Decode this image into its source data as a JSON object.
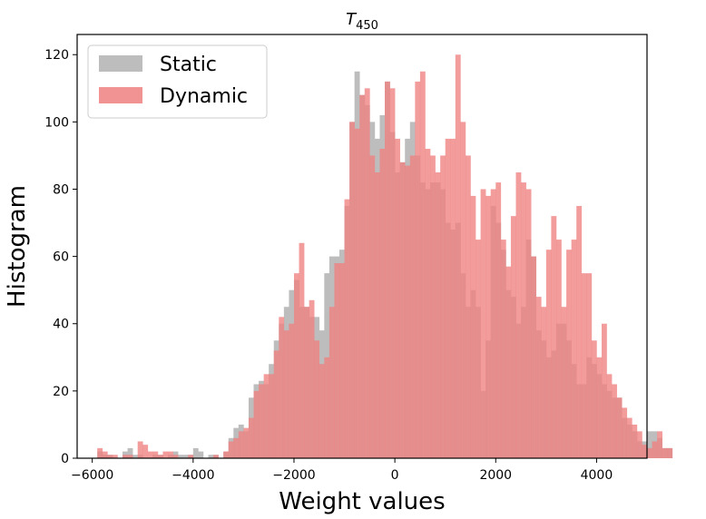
{
  "chart_data": {
    "type": "bar",
    "title_main": "T",
    "title_sub": "450",
    "xlabel": "Weight values",
    "ylabel": "Histogram",
    "xlim": [
      -6300,
      5000
    ],
    "ylim": [
      0,
      126
    ],
    "xticks": [
      -6000,
      -4000,
      -2000,
      0,
      2000,
      4000
    ],
    "xtick_labels": [
      "−6000",
      "−4000",
      "−2000",
      "0",
      "2000",
      "4000"
    ],
    "yticks": [
      0,
      20,
      40,
      60,
      80,
      100,
      120
    ],
    "ytick_labels": [
      "0",
      "20",
      "40",
      "60",
      "80",
      "100",
      "120"
    ],
    "grid": false,
    "legend_position": "top-left",
    "bin_start": -5850,
    "bin_width": 100,
    "series": [
      {
        "name": "Static",
        "color": "#bdbdbd",
        "values": [
          2,
          1,
          1,
          0,
          0,
          2,
          3,
          1,
          1,
          0,
          0,
          1,
          1,
          0,
          1,
          2,
          1,
          1,
          1,
          3,
          2,
          0,
          1,
          1,
          0,
          2,
          6,
          9,
          10,
          8,
          18,
          22,
          23,
          22,
          28,
          35,
          40,
          45,
          50,
          53,
          45,
          45,
          42,
          42,
          38,
          55,
          60,
          60,
          62,
          75,
          100,
          115,
          108,
          105,
          100,
          95,
          102,
          112,
          97,
          85,
          88,
          95,
          100,
          90,
          82,
          80,
          82,
          82,
          80,
          70,
          68,
          70,
          55,
          45,
          50,
          45,
          20,
          35,
          75,
          70,
          62,
          50,
          48,
          40,
          45,
          65,
          60,
          38,
          35,
          30,
          32,
          40,
          40,
          35,
          28,
          22,
          22,
          30,
          28,
          25,
          22,
          20,
          18,
          18,
          12,
          10,
          8,
          5,
          5,
          8,
          8,
          6,
          3,
          3
        ]
      },
      {
        "name": "Dynamic",
        "color": "#f08080",
        "values": [
          3,
          2,
          1,
          1,
          0,
          1,
          1,
          0,
          5,
          4,
          2,
          2,
          1,
          2,
          2,
          1,
          0,
          0,
          1,
          0,
          0,
          0,
          0,
          1,
          0,
          2,
          5,
          6,
          8,
          9,
          12,
          20,
          22,
          25,
          25,
          32,
          42,
          38,
          40,
          55,
          64,
          45,
          47,
          35,
          28,
          30,
          45,
          58,
          58,
          77,
          100,
          98,
          108,
          110,
          90,
          85,
          92,
          112,
          110,
          95,
          88,
          87,
          90,
          112,
          115,
          92,
          90,
          85,
          90,
          95,
          95,
          120,
          100,
          90,
          78,
          65,
          80,
          78,
          80,
          82,
          65,
          57,
          72,
          85,
          82,
          80,
          60,
          48,
          45,
          62,
          72,
          65,
          45,
          62,
          65,
          75,
          55,
          55,
          35,
          30,
          40,
          25,
          22,
          18,
          15,
          12,
          10,
          8,
          4,
          3,
          5,
          8,
          3,
          3
        ]
      }
    ]
  }
}
